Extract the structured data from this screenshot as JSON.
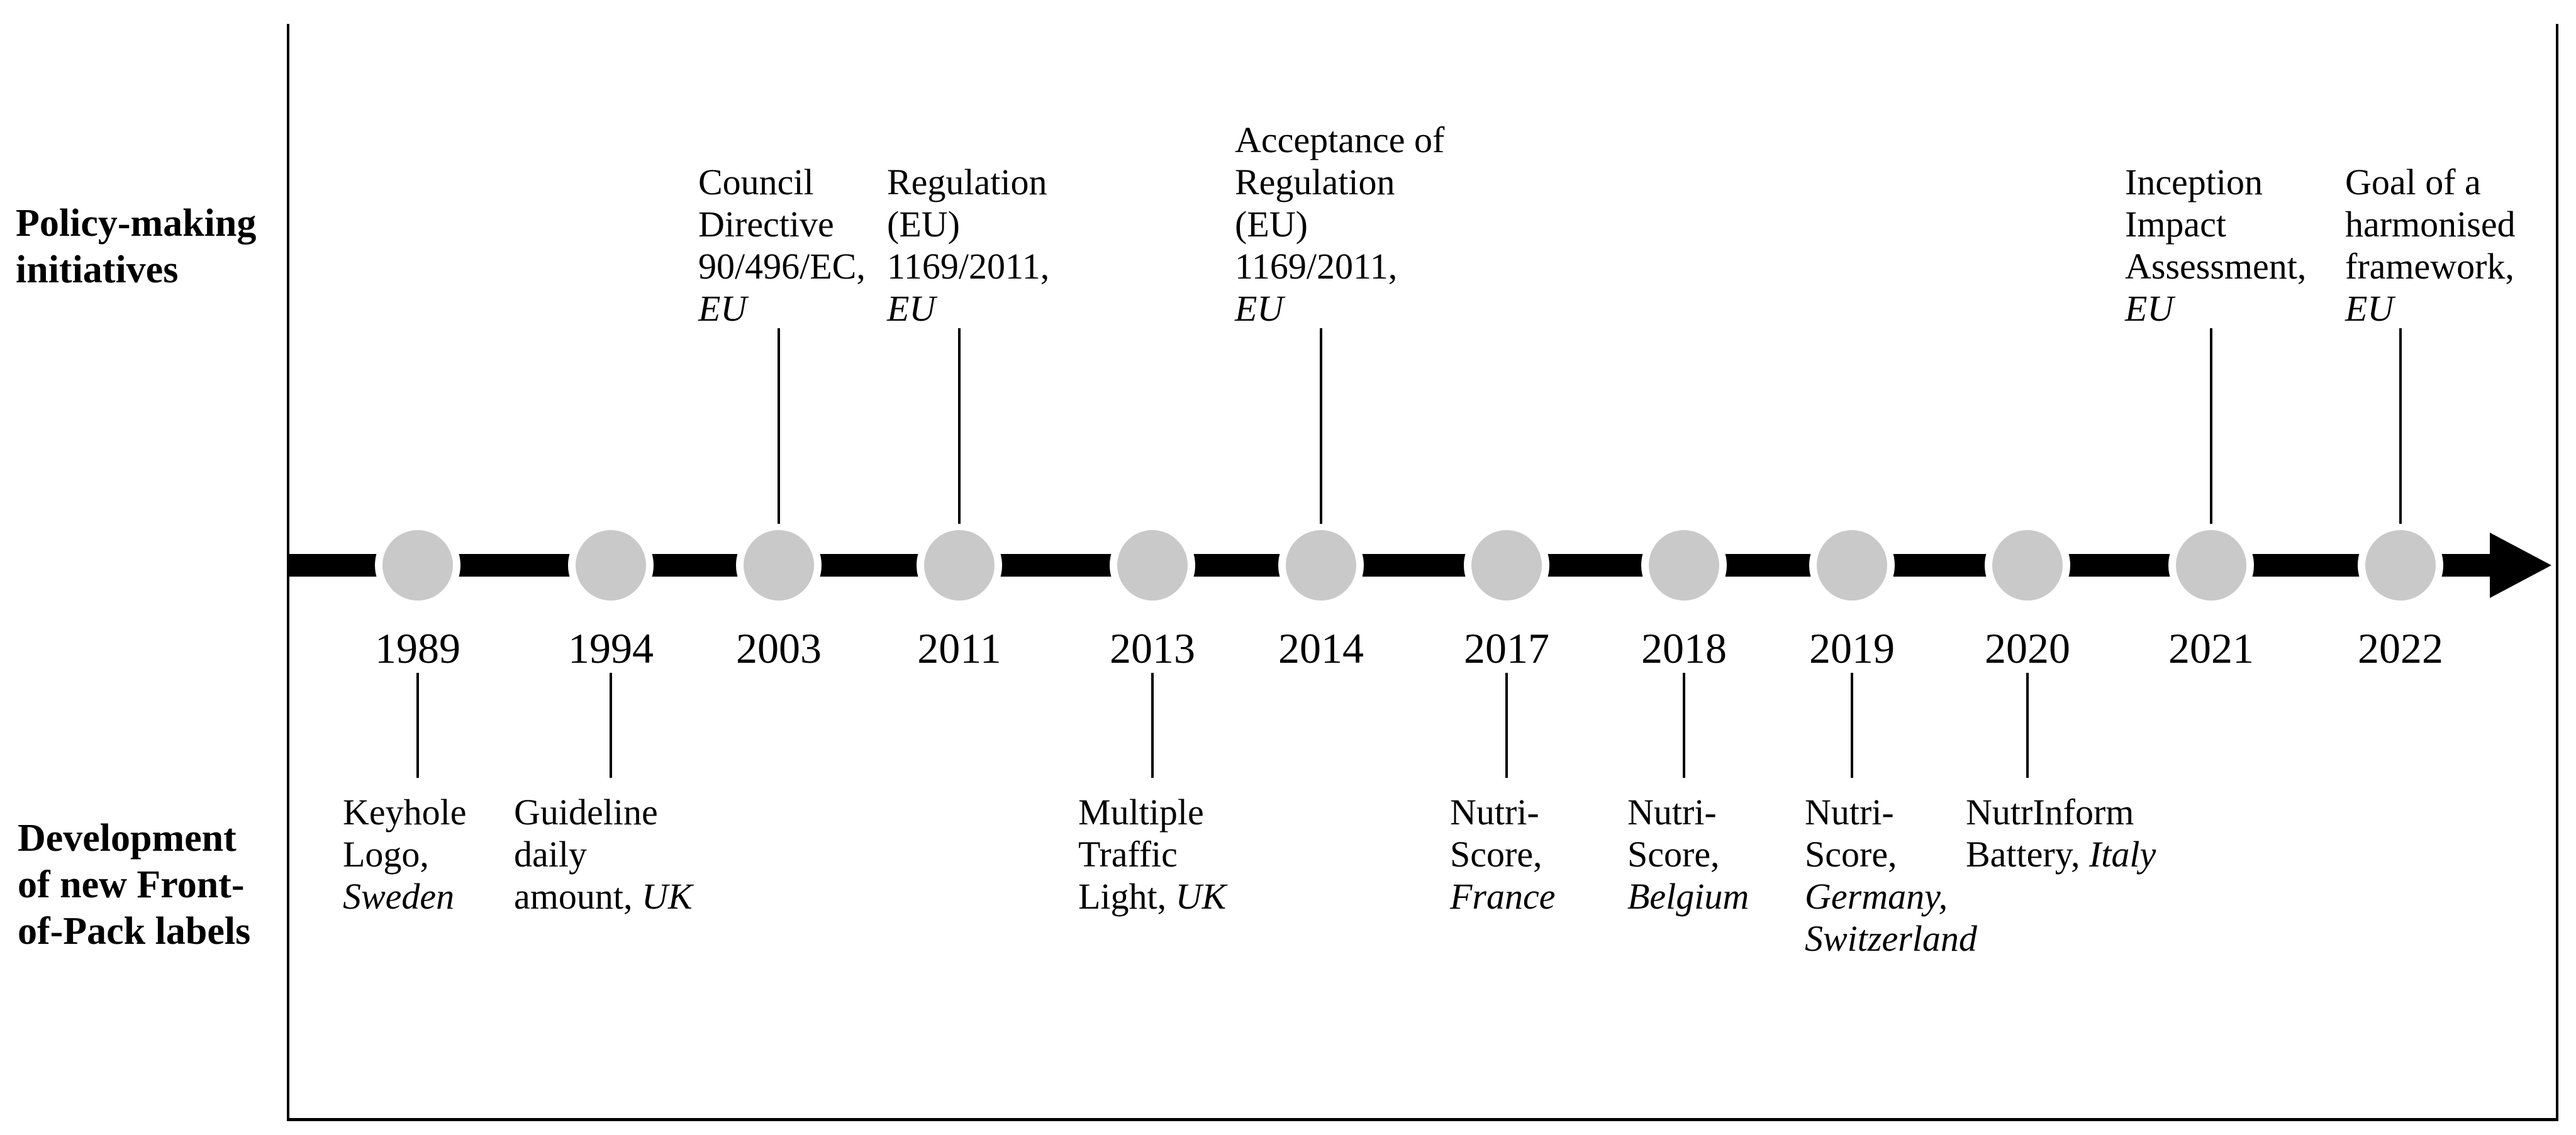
{
  "figure": {
    "background": "#ffffff",
    "border_color": "#000000",
    "axis_color": "#000000",
    "node_fill": "#c9c9c9",
    "node_halo": "#ffffff"
  },
  "row_labels": {
    "top": {
      "lines": [
        "Policy-making",
        "initiatives"
      ]
    },
    "bottom": {
      "lines": [
        "Development",
        "of new Front-",
        "of-Pack labels"
      ]
    }
  },
  "timeline": {
    "years": [
      "1989",
      "1994",
      "2003",
      "2011",
      "2013",
      "2014",
      "2017",
      "2018",
      "2019",
      "2020",
      "2021",
      "2022"
    ]
  },
  "events_above": [
    {
      "year": "2003",
      "lines": [
        [
          {
            "text": "Council",
            "italic": false
          }
        ],
        [
          {
            "text": "Directive",
            "italic": false
          }
        ],
        [
          {
            "text": "90/496/EC,",
            "italic": false
          }
        ],
        [
          {
            "text": "EU",
            "italic": true
          }
        ]
      ]
    },
    {
      "year": "2011",
      "lines": [
        [
          {
            "text": "Regulation",
            "italic": false
          }
        ],
        [
          {
            "text": "(EU)",
            "italic": false
          }
        ],
        [
          {
            "text": "1169/2011,",
            "italic": false
          }
        ],
        [
          {
            "text": "EU",
            "italic": true
          }
        ]
      ]
    },
    {
      "year": "2014",
      "lines": [
        [
          {
            "text": "Acceptance of",
            "italic": false
          }
        ],
        [
          {
            "text": "Regulation",
            "italic": false
          }
        ],
        [
          {
            "text": "(EU)",
            "italic": false
          }
        ],
        [
          {
            "text": "1169/2011,",
            "italic": false
          }
        ],
        [
          {
            "text": "EU",
            "italic": true
          }
        ]
      ]
    },
    {
      "year": "2021",
      "lines": [
        [
          {
            "text": "Inception",
            "italic": false
          }
        ],
        [
          {
            "text": "Impact",
            "italic": false
          }
        ],
        [
          {
            "text": "Assessment,",
            "italic": false
          }
        ],
        [
          {
            "text": "EU",
            "italic": true
          }
        ]
      ]
    },
    {
      "year": "2022",
      "lines": [
        [
          {
            "text": "Goal of a",
            "italic": false
          }
        ],
        [
          {
            "text": "harmonised",
            "italic": false
          }
        ],
        [
          {
            "text": "framework,",
            "italic": false
          }
        ],
        [
          {
            "text": "EU",
            "italic": true
          }
        ]
      ]
    }
  ],
  "events_below": [
    {
      "year": "1989",
      "lines": [
        [
          {
            "text": "Keyhole",
            "italic": false
          }
        ],
        [
          {
            "text": "Logo,",
            "italic": false
          }
        ],
        [
          {
            "text": "Sweden",
            "italic": true
          }
        ]
      ]
    },
    {
      "year": "1994",
      "lines": [
        [
          {
            "text": "Guideline",
            "italic": false
          }
        ],
        [
          {
            "text": "daily",
            "italic": false
          }
        ],
        [
          {
            "text": "amount, ",
            "italic": false
          },
          {
            "text": "UK",
            "italic": true
          }
        ]
      ]
    },
    {
      "year": "2013",
      "lines": [
        [
          {
            "text": "Multiple",
            "italic": false
          }
        ],
        [
          {
            "text": "Traffic",
            "italic": false
          }
        ],
        [
          {
            "text": "Light, ",
            "italic": false
          },
          {
            "text": "UK",
            "italic": true
          }
        ]
      ]
    },
    {
      "year": "2017",
      "lines": [
        [
          {
            "text": "Nutri-",
            "italic": false
          }
        ],
        [
          {
            "text": "Score,",
            "italic": false
          }
        ],
        [
          {
            "text": "France",
            "italic": true
          }
        ]
      ]
    },
    {
      "year": "2018",
      "lines": [
        [
          {
            "text": "Nutri-",
            "italic": false
          }
        ],
        [
          {
            "text": "Score,",
            "italic": false
          }
        ],
        [
          {
            "text": "Belgium",
            "italic": true
          }
        ]
      ]
    },
    {
      "year": "2019",
      "lines": [
        [
          {
            "text": "Nutri-",
            "italic": false
          }
        ],
        [
          {
            "text": "Score,",
            "italic": false
          }
        ],
        [
          {
            "text": "Germany,",
            "italic": true
          }
        ],
        [
          {
            "text": "Switzerland",
            "italic": true
          }
        ]
      ]
    },
    {
      "year": "2020",
      "lines": [
        [
          {
            "text": "NutrInform",
            "italic": false
          }
        ],
        [
          {
            "text": "Battery, ",
            "italic": false
          },
          {
            "text": "Italy",
            "italic": true
          }
        ]
      ]
    }
  ]
}
